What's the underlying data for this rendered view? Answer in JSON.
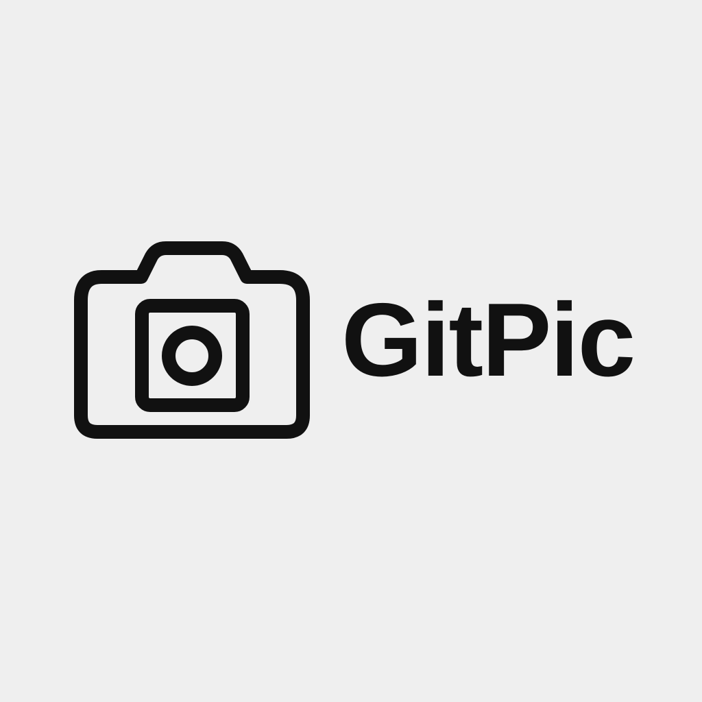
{
  "logo": {
    "icon": "camera-icon",
    "wordmark": "GitPic",
    "ink_color": "#111111",
    "background_color": "#efefef"
  }
}
